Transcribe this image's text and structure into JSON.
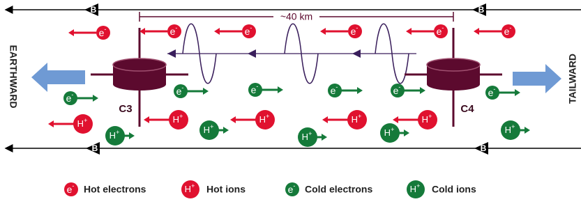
{
  "b_labels": [
    "B",
    "B",
    "B",
    "B"
  ],
  "distance": "~40 km",
  "directions": {
    "left": "EARTHWARD",
    "right": "TAILWARD"
  },
  "spacecraft": [
    "C3",
    "C4"
  ],
  "particle_symbols": {
    "electron": {
      "base": "e",
      "sup": "-"
    },
    "ion": {
      "base": "H",
      "sup": "+"
    }
  },
  "legend": [
    {
      "label": "Hot electrons"
    },
    {
      "label": "Hot ions"
    },
    {
      "label": "Cold electrons"
    },
    {
      "label": "Cold ions"
    }
  ]
}
